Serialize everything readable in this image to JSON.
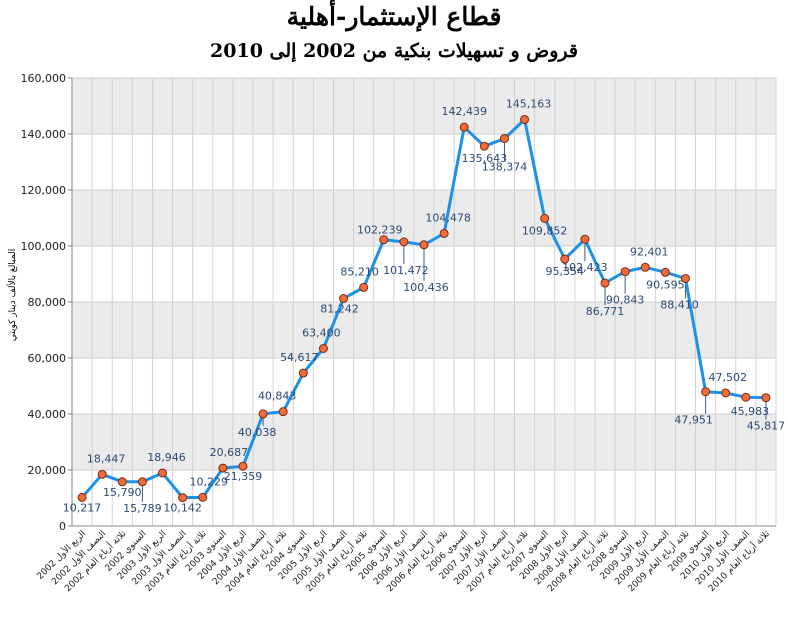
{
  "chart_data": {
    "type": "line",
    "title": "قطاع الإستثمار-أهلية",
    "subtitle": "قروض و تسهيلات بنكية من 2002 إلى 2010",
    "ylabel": "المبالغ بالألف دينار كويتي",
    "ylim": [
      0,
      160000
    ],
    "yticks": [
      "0",
      "20,000",
      "40,000",
      "60,000",
      "80,000",
      "100,000",
      "120,000",
      "140,000",
      "160,000"
    ],
    "grid": true,
    "line_color": "#1e90e8",
    "marker_color": "#f26b3a",
    "categories": [
      "الربع الأول 2002",
      "النصف الأول 2002",
      "ثلاثة أرباع العام 2002",
      "السنوي 2002",
      "الربع الأول 2003",
      "النصف الأول 2003",
      "ثلاثة أرباع العام 2003",
      "السنوي 2003",
      "الربع الأول 2004",
      "النصف الأول 2004",
      "ثلاثة أرباع العام 2004",
      "السنوي 2004",
      "الربع الأول 2005",
      "النصف الأول 2005",
      "ثلاثة أرباع العام 2005",
      "السنوي 2005",
      "الربع الأول 2006",
      "النصف الأول 2006",
      "ثلاثة أرباع العام 2006",
      "السنوي 2006",
      "الربع الأول 2007",
      "النصف الأول 2007",
      "ثلاثة أرباع العام 2007",
      "السنوي 2007",
      "الربع الأول 2008",
      "النصف الأول 2008",
      "ثلاثة أرباع العام 2008",
      "السنوي 2008",
      "الربع الأول 2009",
      "النصف الأول 2009",
      "ثلاثة أرباع العام 2009",
      "السنوي 2009",
      "الربع الأول 2010",
      "النصف الأول 2010",
      "ثلاثة أرباع العام 2010"
    ],
    "values": [
      10217,
      18447,
      15790,
      15789,
      18946,
      10142,
      10229,
      20687,
      21359,
      40038,
      40843,
      54617,
      63400,
      81242,
      85210,
      102239,
      101472,
      100436,
      104478,
      142439,
      135643,
      138374,
      145163,
      109852,
      95354,
      102423,
      86771,
      90843,
      92401,
      90595,
      88410,
      47951,
      47502,
      45983,
      45817
    ],
    "value_labels": [
      "10,217",
      "18,447",
      "15,790",
      "15,789",
      "18,946",
      "10,142",
      "10,229",
      "20,687",
      "21,359",
      "40,038",
      "40,843",
      "54,617",
      "63,400",
      "81,242",
      "85,210",
      "102,239",
      "101,472",
      "100,436",
      "104,478",
      "142,439",
      "135,643",
      "138,374",
      "145,163",
      "109,852",
      "95,354",
      "102,423",
      "86,771",
      "90,843",
      "92,401",
      "90,595",
      "88,410",
      "47,951",
      "47,502",
      "45,983",
      "45,817"
    ]
  }
}
